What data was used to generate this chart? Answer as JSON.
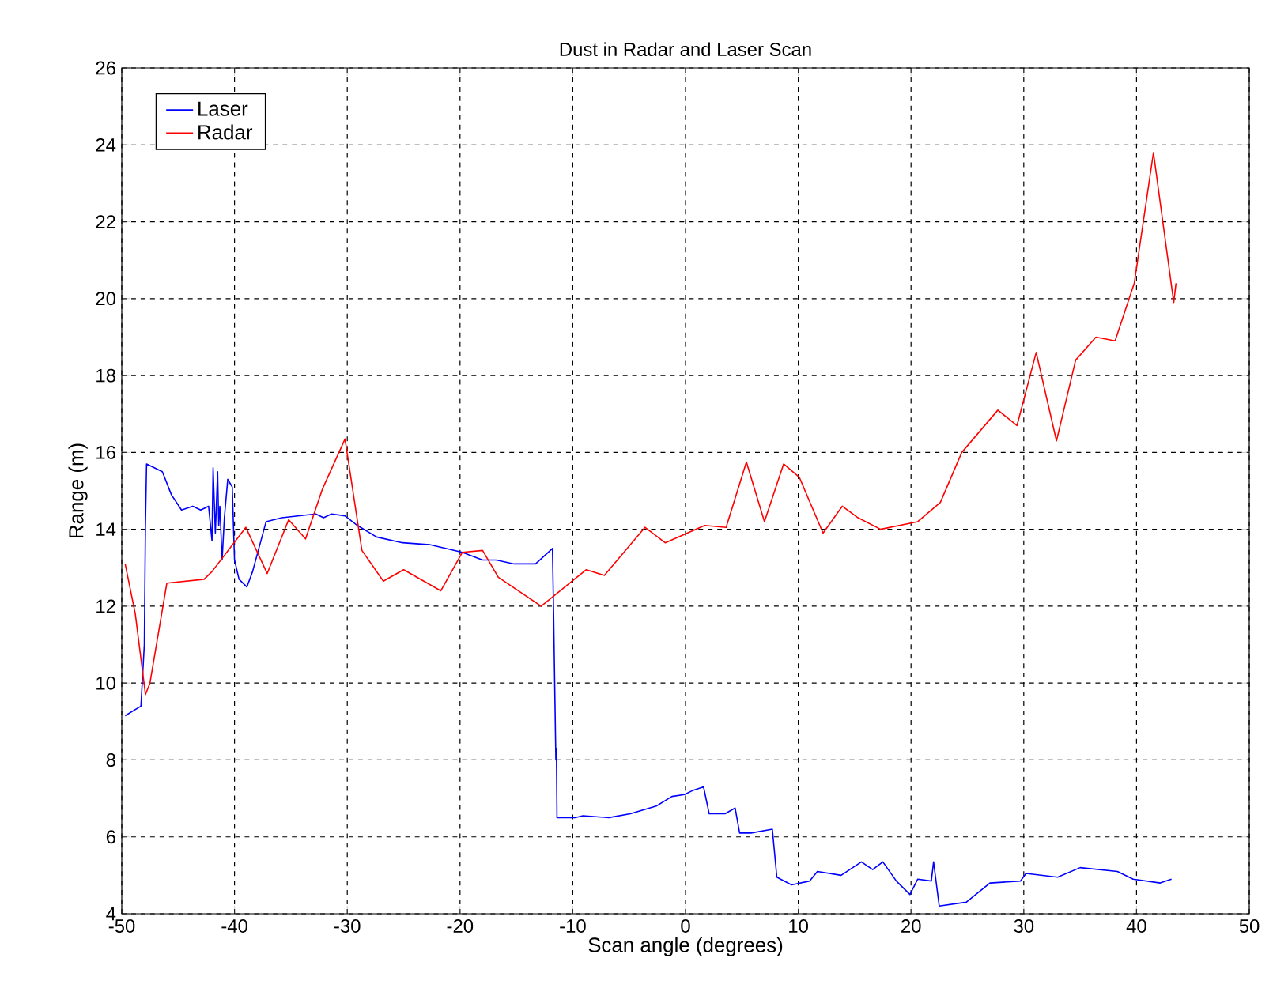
{
  "chart_data": {
    "type": "line",
    "title": "Dust in Radar and Laser Scan",
    "xlabel": "Scan angle (degrees)",
    "ylabel": "Range (m)",
    "xlim": [
      -50,
      50
    ],
    "ylim": [
      4,
      26
    ],
    "xticks": [
      -50,
      -40,
      -30,
      -20,
      -10,
      0,
      10,
      20,
      30,
      40,
      50
    ],
    "yticks": [
      4,
      6,
      8,
      10,
      12,
      14,
      16,
      18,
      20,
      22,
      24,
      26
    ],
    "grid": true,
    "legend": "top left",
    "marker": "none",
    "line_style": "solid",
    "series": [
      {
        "name": "Laser",
        "color": "#0000ff",
        "x": [
          -49.7,
          -48.3,
          -48.0,
          -47.9,
          -47.8,
          -46.4,
          -45.6,
          -44.7,
          -43.7,
          -43.0,
          -42.3,
          -42.0,
          -41.9,
          -41.7,
          -41.5,
          -41.4,
          -41.3,
          -41.1,
          -40.9,
          -40.6,
          -40.4,
          -40.2,
          -40.0,
          -39.6,
          -38.9,
          -38.4,
          -37.2,
          -35.8,
          -32.8,
          -32.1,
          -31.4,
          -30.2,
          -29.1,
          -27.4,
          -25.1,
          -22.7,
          -19.8,
          -18.0,
          -16.8,
          -15.2,
          -13.3,
          -11.8,
          -11.7,
          -11.5,
          -11.45,
          -11.4,
          -9.8,
          -9.1,
          -6.8,
          -4.9,
          -2.6,
          -1.2,
          -0.1,
          0.6,
          1.6,
          2.1,
          3.5,
          4.4,
          4.8,
          5.8,
          7.7,
          8.1,
          9.4,
          11.0,
          11.7,
          13.8,
          15.6,
          16.6,
          17.5,
          18.7,
          19.9,
          20.6,
          21.8,
          22.0,
          22.5,
          24.9,
          27.0,
          29.7,
          30.2,
          33.0,
          35.0,
          38.3,
          39.7,
          42.1,
          43.1
        ],
        "values": [
          9.15,
          9.4,
          11.0,
          14.1,
          15.7,
          15.5,
          14.9,
          14.5,
          14.6,
          14.5,
          14.6,
          13.7,
          15.6,
          13.9,
          15.5,
          14.1,
          14.6,
          13.2,
          14.3,
          15.3,
          15.2,
          15.1,
          13.2,
          12.7,
          12.5,
          12.9,
          14.2,
          14.3,
          14.4,
          14.3,
          14.4,
          14.35,
          14.1,
          13.8,
          13.65,
          13.6,
          13.4,
          13.2,
          13.2,
          13.1,
          13.1,
          13.5,
          11.8,
          8.0,
          8.3,
          6.5,
          6.5,
          6.55,
          6.5,
          6.6,
          6.8,
          7.05,
          7.1,
          7.2,
          7.3,
          6.6,
          6.6,
          6.75,
          6.1,
          6.1,
          6.2,
          4.95,
          4.75,
          4.85,
          5.1,
          5.0,
          5.35,
          5.15,
          5.35,
          4.85,
          4.5,
          4.9,
          4.85,
          5.35,
          4.2,
          4.3,
          4.8,
          4.85,
          5.05,
          4.95,
          5.2,
          5.1,
          4.9,
          4.8,
          4.9
        ]
      },
      {
        "name": "Radar",
        "color": "#ff0000",
        "x": [
          -49.7,
          -48.8,
          -47.9,
          -47.5,
          -46.0,
          -42.7,
          -42.0,
          -39.0,
          -37.1,
          -35.2,
          -33.7,
          -32.2,
          -30.2,
          -28.7,
          -26.8,
          -25.0,
          -21.7,
          -19.8,
          -18.0,
          -16.6,
          -12.8,
          -8.8,
          -7.2,
          -3.6,
          -1.8,
          1.7,
          3.6,
          5.4,
          7.0,
          8.7,
          10.1,
          12.2,
          13.9,
          15.3,
          17.3,
          20.6,
          22.6,
          24.5,
          27.7,
          29.4,
          31.1,
          32.9,
          34.6,
          36.4,
          38.1,
          39.8,
          41.5,
          43.3,
          43.5
        ],
        "values": [
          13.1,
          11.8,
          9.7,
          10.0,
          12.6,
          12.7,
          12.9,
          14.05,
          12.85,
          14.25,
          13.75,
          15.05,
          16.35,
          13.45,
          12.65,
          12.95,
          12.4,
          13.4,
          13.45,
          12.75,
          12.0,
          12.95,
          12.8,
          14.05,
          13.65,
          14.1,
          14.05,
          15.75,
          14.2,
          15.7,
          15.35,
          13.9,
          14.6,
          14.3,
          14.0,
          14.2,
          14.7,
          16.0,
          17.1,
          16.7,
          18.6,
          16.3,
          18.4,
          19.0,
          18.9,
          20.4,
          23.8,
          19.9,
          20.4
        ]
      }
    ]
  }
}
